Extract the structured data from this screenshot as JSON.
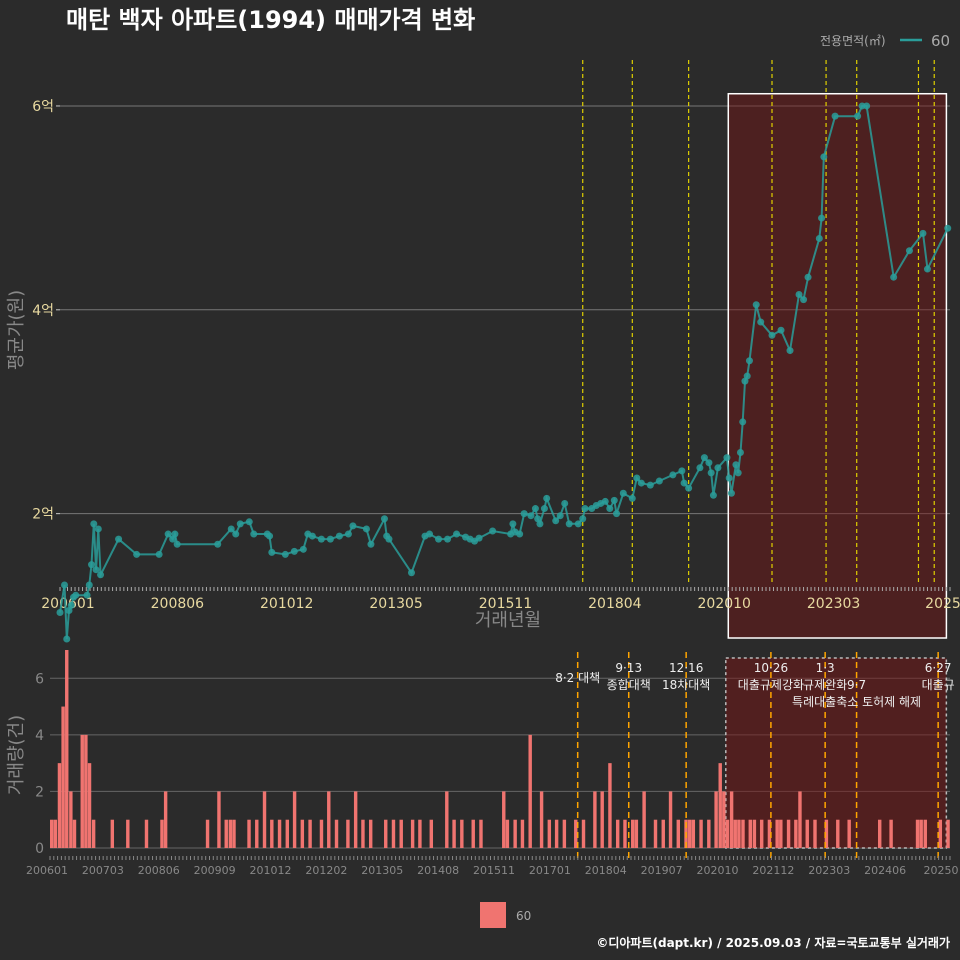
{
  "chart_data": [
    {
      "type": "line",
      "title": "매탄 백자 아파트(1994) 매매가격 변화",
      "xlabel": "거래년월",
      "ylabel": "평균가(원)",
      "x_tick_labels": [
        "200601",
        "200806",
        "201012",
        "201305",
        "201511",
        "201804",
        "202010",
        "202303",
        "2025"
      ],
      "y_ticks": [
        2,
        4,
        6
      ],
      "y_tick_labels": [
        "2억",
        "4억",
        "6억"
      ],
      "ylim": [
        1.3,
        6.5
      ],
      "xlim": [
        2006.0,
        2025.75
      ],
      "legend_title": "전용면적(㎡)",
      "legend_label": "60",
      "series_color": "#2a9d9a",
      "highlight_range": [
        2020.83,
        2025.67
      ],
      "policy_dates": [
        2017.6,
        2018.7,
        2019.95,
        2021.8,
        2023.0,
        2023.68,
        2025.05,
        2025.4
      ],
      "series": [
        {
          "name": "60",
          "points": [
            [
              2006.0,
              1.03
            ],
            [
              2006.1,
              1.3
            ],
            [
              2006.15,
              0.77
            ],
            [
              2006.2,
              1.05
            ],
            [
              2006.25,
              1.1
            ],
            [
              2006.3,
              1.18
            ],
            [
              2006.35,
              1.2
            ],
            [
              2006.6,
              1.2
            ],
            [
              2006.65,
              1.3
            ],
            [
              2006.7,
              1.5
            ],
            [
              2006.75,
              1.9
            ],
            [
              2006.8,
              1.45
            ],
            [
              2006.85,
              1.85
            ],
            [
              2006.9,
              1.4
            ],
            [
              2007.3,
              1.75
            ],
            [
              2007.7,
              1.6
            ],
            [
              2008.2,
              1.6
            ],
            [
              2008.4,
              1.8
            ],
            [
              2008.5,
              1.75
            ],
            [
              2008.55,
              1.8
            ],
            [
              2008.6,
              1.7
            ],
            [
              2009.5,
              1.7
            ],
            [
              2009.8,
              1.85
            ],
            [
              2009.9,
              1.8
            ],
            [
              2010.0,
              1.9
            ],
            [
              2010.2,
              1.92
            ],
            [
              2010.3,
              1.8
            ],
            [
              2010.6,
              1.8
            ],
            [
              2010.65,
              1.78
            ],
            [
              2010.7,
              1.62
            ],
            [
              2011.0,
              1.6
            ],
            [
              2011.2,
              1.63
            ],
            [
              2011.4,
              1.65
            ],
            [
              2011.5,
              1.8
            ],
            [
              2011.6,
              1.78
            ],
            [
              2011.8,
              1.75
            ],
            [
              2012.0,
              1.75
            ],
            [
              2012.2,
              1.78
            ],
            [
              2012.4,
              1.8
            ],
            [
              2012.5,
              1.88
            ],
            [
              2012.8,
              1.85
            ],
            [
              2012.9,
              1.7
            ],
            [
              2013.2,
              1.95
            ],
            [
              2013.25,
              1.78
            ],
            [
              2013.3,
              1.75
            ],
            [
              2013.8,
              1.42
            ],
            [
              2014.1,
              1.78
            ],
            [
              2014.2,
              1.8
            ],
            [
              2014.4,
              1.75
            ],
            [
              2014.6,
              1.75
            ],
            [
              2014.8,
              1.8
            ],
            [
              2015.0,
              1.77
            ],
            [
              2015.1,
              1.75
            ],
            [
              2015.2,
              1.73
            ],
            [
              2015.3,
              1.76
            ],
            [
              2015.6,
              1.83
            ],
            [
              2016.0,
              1.8
            ],
            [
              2016.05,
              1.9
            ],
            [
              2016.1,
              1.82
            ],
            [
              2016.2,
              1.8
            ],
            [
              2016.3,
              2.0
            ],
            [
              2016.45,
              1.98
            ],
            [
              2016.55,
              2.05
            ],
            [
              2016.6,
              1.95
            ],
            [
              2016.65,
              1.9
            ],
            [
              2016.75,
              2.05
            ],
            [
              2016.8,
              2.15
            ],
            [
              2017.0,
              1.93
            ],
            [
              2017.1,
              1.98
            ],
            [
              2017.2,
              2.1
            ],
            [
              2017.3,
              1.9
            ],
            [
              2017.5,
              1.9
            ],
            [
              2017.6,
              1.95
            ],
            [
              2017.65,
              2.05
            ],
            [
              2017.8,
              2.05
            ],
            [
              2017.9,
              2.08
            ],
            [
              2018.0,
              2.1
            ],
            [
              2018.1,
              2.12
            ],
            [
              2018.2,
              2.05
            ],
            [
              2018.3,
              2.13
            ],
            [
              2018.35,
              2.0
            ],
            [
              2018.5,
              2.2
            ],
            [
              2018.7,
              2.15
            ],
            [
              2018.8,
              2.35
            ],
            [
              2018.9,
              2.3
            ],
            [
              2019.1,
              2.28
            ],
            [
              2019.3,
              2.32
            ],
            [
              2019.6,
              2.38
            ],
            [
              2019.8,
              2.42
            ],
            [
              2019.85,
              2.3
            ],
            [
              2019.95,
              2.25
            ],
            [
              2020.2,
              2.45
            ],
            [
              2020.3,
              2.55
            ],
            [
              2020.4,
              2.5
            ],
            [
              2020.45,
              2.4
            ],
            [
              2020.5,
              2.18
            ],
            [
              2020.6,
              2.45
            ],
            [
              2020.8,
              2.55
            ],
            [
              2020.85,
              2.35
            ],
            [
              2020.9,
              2.2
            ],
            [
              2021.0,
              2.48
            ],
            [
              2021.05,
              2.4
            ],
            [
              2021.1,
              2.6
            ],
            [
              2021.15,
              2.9
            ],
            [
              2021.2,
              3.3
            ],
            [
              2021.25,
              3.35
            ],
            [
              2021.3,
              3.5
            ],
            [
              2021.45,
              4.05
            ],
            [
              2021.55,
              3.88
            ],
            [
              2021.8,
              3.75
            ],
            [
              2022.0,
              3.8
            ],
            [
              2022.2,
              3.6
            ],
            [
              2022.4,
              4.15
            ],
            [
              2022.5,
              4.1
            ],
            [
              2022.6,
              4.32
            ],
            [
              2022.85,
              4.7
            ],
            [
              2022.9,
              4.9
            ],
            [
              2022.95,
              5.5
            ],
            [
              2023.2,
              5.9
            ],
            [
              2023.7,
              5.9
            ],
            [
              2023.8,
              6.0
            ],
            [
              2023.9,
              6.0
            ],
            [
              2024.5,
              4.32
            ],
            [
              2024.85,
              4.58
            ],
            [
              2025.15,
              4.75
            ],
            [
              2025.25,
              4.4
            ],
            [
              2025.7,
              4.8
            ]
          ]
        }
      ]
    },
    {
      "type": "bar",
      "ylabel": "거래량(건)",
      "x_tick_labels": [
        "200601",
        "200703",
        "200806",
        "200909",
        "201012",
        "201202",
        "201305",
        "201408",
        "201511",
        "201701",
        "201804",
        "201907",
        "202010",
        "202112",
        "202303",
        "202406",
        "20250"
      ],
      "y_ticks": [
        0,
        2,
        4,
        6
      ],
      "ylim": [
        0,
        7
      ],
      "xlim": [
        2006.0,
        2025.75
      ],
      "bar_color": "#f07470",
      "highlight_range": [
        2020.83,
        2025.67
      ],
      "values": [
        [
          2006.0,
          1
        ],
        [
          2006.08,
          1
        ],
        [
          2006.17,
          3
        ],
        [
          2006.25,
          5
        ],
        [
          2006.33,
          7
        ],
        [
          2006.42,
          2
        ],
        [
          2006.5,
          1
        ],
        [
          2006.67,
          4
        ],
        [
          2006.75,
          4
        ],
        [
          2006.83,
          3
        ],
        [
          2006.92,
          1
        ],
        [
          2007.33,
          1
        ],
        [
          2007.67,
          1
        ],
        [
          2008.08,
          1
        ],
        [
          2008.42,
          1
        ],
        [
          2008.5,
          2
        ],
        [
          2009.42,
          1
        ],
        [
          2009.67,
          2
        ],
        [
          2009.83,
          1
        ],
        [
          2009.92,
          1
        ],
        [
          2010.0,
          1
        ],
        [
          2010.33,
          1
        ],
        [
          2010.5,
          1
        ],
        [
          2010.67,
          2
        ],
        [
          2010.83,
          1
        ],
        [
          2011.0,
          1
        ],
        [
          2011.17,
          1
        ],
        [
          2011.33,
          2
        ],
        [
          2011.5,
          1
        ],
        [
          2011.67,
          1
        ],
        [
          2011.92,
          1
        ],
        [
          2012.08,
          2
        ],
        [
          2012.25,
          1
        ],
        [
          2012.5,
          1
        ],
        [
          2012.67,
          2
        ],
        [
          2012.83,
          1
        ],
        [
          2013.0,
          1
        ],
        [
          2013.33,
          1
        ],
        [
          2013.5,
          1
        ],
        [
          2013.67,
          1
        ],
        [
          2013.92,
          1
        ],
        [
          2014.08,
          1
        ],
        [
          2014.33,
          1
        ],
        [
          2014.67,
          2
        ],
        [
          2014.83,
          1
        ],
        [
          2015.0,
          1
        ],
        [
          2015.25,
          1
        ],
        [
          2015.42,
          1
        ],
        [
          2015.92,
          2
        ],
        [
          2016.0,
          1
        ],
        [
          2016.17,
          1
        ],
        [
          2016.33,
          1
        ],
        [
          2016.5,
          4
        ],
        [
          2016.75,
          2
        ],
        [
          2016.92,
          1
        ],
        [
          2017.08,
          1
        ],
        [
          2017.25,
          1
        ],
        [
          2017.5,
          1
        ],
        [
          2017.67,
          1
        ],
        [
          2017.92,
          2
        ],
        [
          2018.08,
          2
        ],
        [
          2018.25,
          3
        ],
        [
          2018.42,
          1
        ],
        [
          2018.58,
          1
        ],
        [
          2018.75,
          1
        ],
        [
          2018.83,
          1
        ],
        [
          2019.0,
          2
        ],
        [
          2019.25,
          1
        ],
        [
          2019.42,
          1
        ],
        [
          2019.58,
          2
        ],
        [
          2019.75,
          1
        ],
        [
          2019.92,
          1
        ],
        [
          2020.0,
          1
        ],
        [
          2020.08,
          1
        ],
        [
          2020.25,
          1
        ],
        [
          2020.42,
          1
        ],
        [
          2020.58,
          2
        ],
        [
          2020.67,
          3
        ],
        [
          2020.75,
          2
        ],
        [
          2020.83,
          1
        ],
        [
          2020.92,
          2
        ],
        [
          2021.0,
          1
        ],
        [
          2021.08,
          1
        ],
        [
          2021.17,
          1
        ],
        [
          2021.33,
          1
        ],
        [
          2021.42,
          1
        ],
        [
          2021.58,
          1
        ],
        [
          2021.75,
          1
        ],
        [
          2021.92,
          1
        ],
        [
          2022.0,
          1
        ],
        [
          2022.17,
          1
        ],
        [
          2022.33,
          1
        ],
        [
          2022.42,
          2
        ],
        [
          2022.58,
          1
        ],
        [
          2022.75,
          1
        ],
        [
          2023.0,
          1
        ],
        [
          2023.25,
          1
        ],
        [
          2023.5,
          1
        ],
        [
          2024.17,
          1
        ],
        [
          2024.42,
          1
        ],
        [
          2025.0,
          1
        ],
        [
          2025.08,
          1
        ],
        [
          2025.17,
          1
        ],
        [
          2025.5,
          1
        ],
        [
          2025.67,
          1
        ]
      ],
      "annotations": [
        {
          "x": 2017.58,
          "lines": [
            "8·2 대책"
          ]
        },
        {
          "x": 2018.7,
          "lines": [
            "9·13",
            "종합대책"
          ]
        },
        {
          "x": 2019.96,
          "lines": [
            "12·16",
            "18차대책"
          ]
        },
        {
          "x": 2021.82,
          "lines": [
            "10·26",
            "대출규제강화"
          ]
        },
        {
          "x": 2023.01,
          "lines": [
            "1·3",
            "규제완화"
          ]
        },
        {
          "x": 2023.7,
          "lines": [
            "",
            "9·7",
            "특례대출축소 토허제 해제"
          ]
        },
        {
          "x": 2025.49,
          "lines": [
            "6·27",
            "대출규"
          ]
        }
      ],
      "legend_label": "60"
    }
  ],
  "footer": "©디아파트(dapt.kr) / 2025.09.03 / 자료=국토교통부 실거래가"
}
